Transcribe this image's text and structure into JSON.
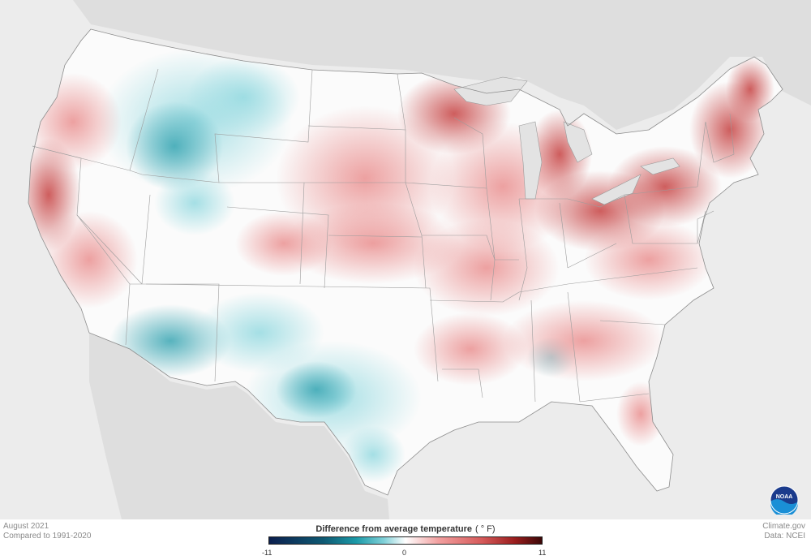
{
  "map": {
    "month": "August 2021",
    "baseline": "Compared to 1991-2020",
    "credit": "Climate.gov",
    "data_source": "Data: NCEI",
    "colors": {
      "background": "#ececec",
      "land_outside": "#e0e0e0",
      "state_border": "#9a9a9a",
      "warm_strong": "#c94c4c",
      "warm_light": "#f4c4c4",
      "cool_strong": "#3aa6b3",
      "cool_light": "#c9eef0",
      "neutral": "#ffffff"
    },
    "logo": {
      "icon": "noaa-logo-icon",
      "text": "NOAA"
    }
  },
  "legend": {
    "title": "Difference from average temperature",
    "unit": "( ° F)",
    "min_label": "-11",
    "mid_label": "0",
    "max_label": "11",
    "range": [
      -11,
      11
    ]
  }
}
